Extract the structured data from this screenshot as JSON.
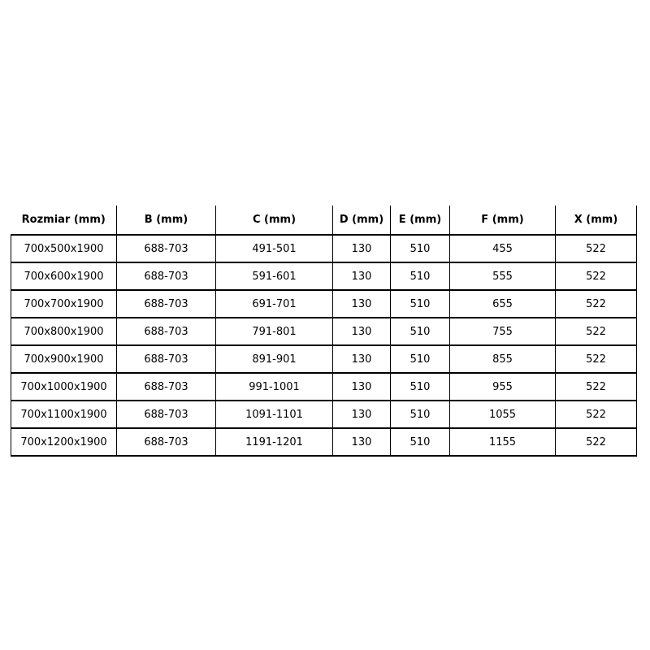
{
  "page": {
    "background": "#ffffff",
    "border_color": "#000000",
    "text_color": "#000000"
  },
  "table": {
    "headers": [
      "Rozmiar (mm)",
      "B (mm)",
      "C (mm)",
      "D (mm)",
      "E (mm)",
      "F (mm)",
      "X (mm)"
    ],
    "rows": [
      [
        "700x500x1900",
        "688-703",
        "491-501",
        "130",
        "510",
        "455",
        "522"
      ],
      [
        "700x600x1900",
        "688-703",
        "591-601",
        "130",
        "510",
        "555",
        "522"
      ],
      [
        "700x700x1900",
        "688-703",
        "691-701",
        "130",
        "510",
        "655",
        "522"
      ],
      [
        "700x800x1900",
        "688-703",
        "791-801",
        "130",
        "510",
        "755",
        "522"
      ],
      [
        "700x900x1900",
        "688-703",
        "891-901",
        "130",
        "510",
        "855",
        "522"
      ],
      [
        "700x1000x1900",
        "688-703",
        "991-1001",
        "130",
        "510",
        "955",
        "522"
      ],
      [
        "700x1100x1900",
        "688-703",
        "1091-1101",
        "130",
        "510",
        "1055",
        "522"
      ],
      [
        "700x1200x1900",
        "688-703",
        "1191-1201",
        "130",
        "510",
        "1155",
        "522"
      ]
    ]
  }
}
